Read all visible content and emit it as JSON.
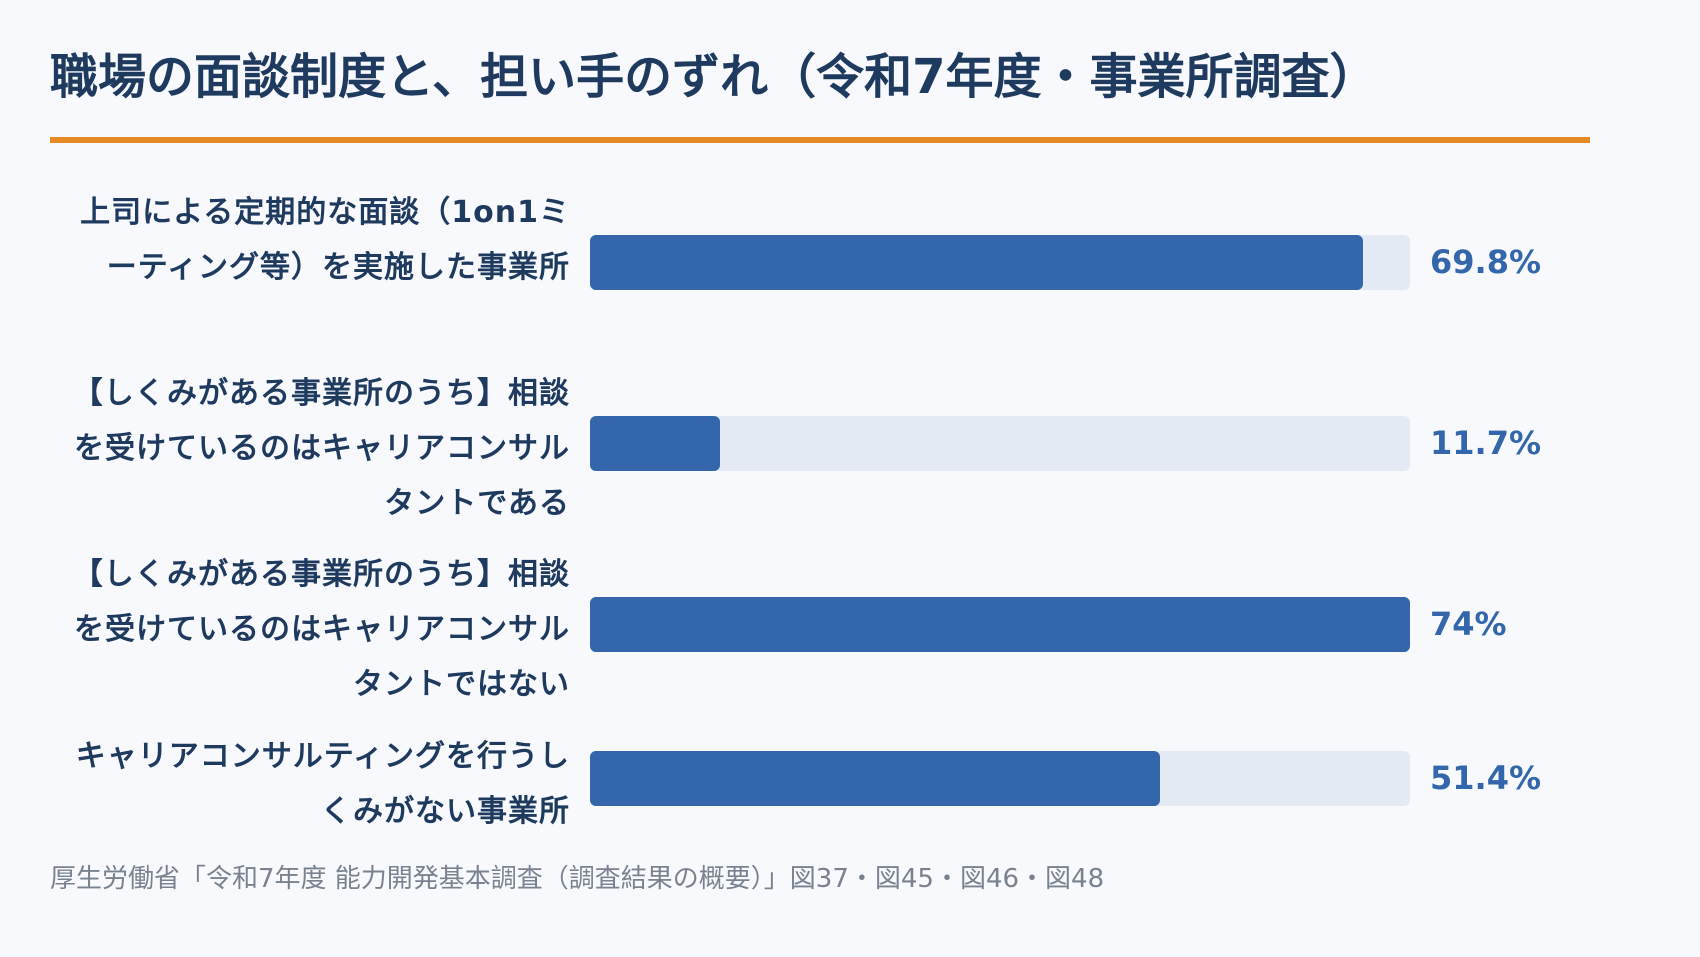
{
  "title": "職場の面談制度と、担い手のずれ（令和7年度・事業所調査）",
  "source": "厚生労働省「令和7年度 能力開発基本調査（調査結果の概要）」図37・図45・図46・図48",
  "colors": {
    "accent": "#e78a23",
    "bar": "#3366aa",
    "track": "#e4eaf3",
    "text": "#1f3a5f",
    "source_text": "#7a8290",
    "background": "#f7f9fc"
  },
  "chart_data": {
    "type": "bar",
    "orientation": "horizontal",
    "xlim": [
      0,
      74
    ],
    "categories": [
      "上司による定期的な面談（1on1ミーティング等）を実施した事業所",
      "【しくみがある事業所のうち】相談を受けているのはキャリアコンサルタントである",
      "【しくみがある事業所のうち】相談を受けているのはキャリアコンサルタントではない",
      "キャリアコンサルティングを行うしくみがない事業所"
    ],
    "values": [
      69.8,
      11.7,
      74,
      51.4
    ],
    "value_labels": [
      "69.8%",
      "11.7%",
      "74%",
      "51.4%"
    ]
  }
}
